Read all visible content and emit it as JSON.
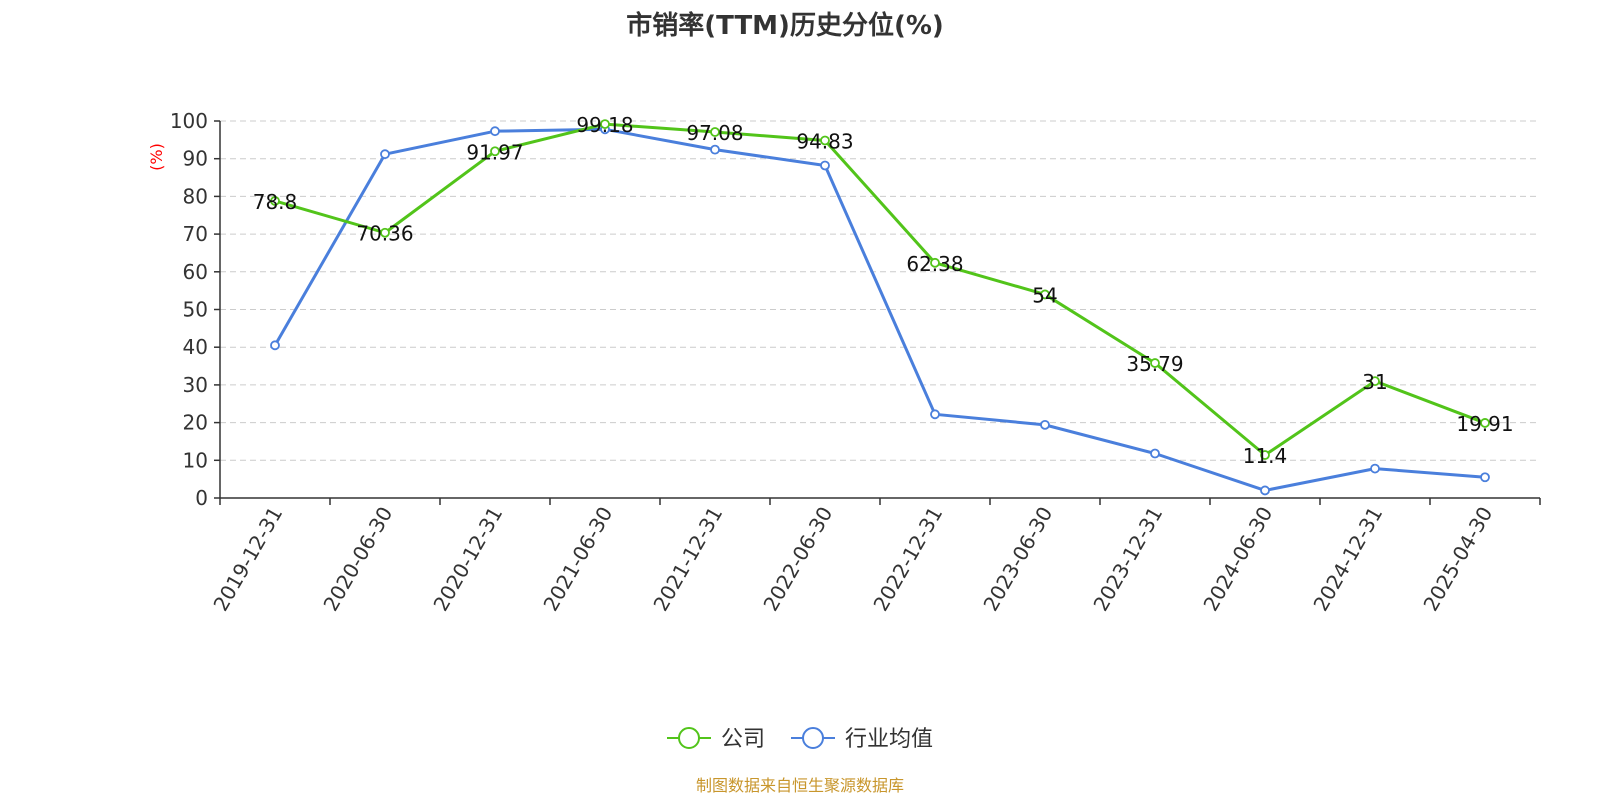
{
  "chart_data": {
    "type": "line",
    "title": "市销率(TTM)历史分位(%)",
    "ylabel": "(%)",
    "xlabel": "",
    "ylim": [
      0,
      100
    ],
    "yticks": [
      0,
      10,
      20,
      30,
      40,
      50,
      60,
      70,
      80,
      90,
      100
    ],
    "grid": true,
    "legend_position": "bottom",
    "categories": [
      "2019-12-31",
      "2020-06-30",
      "2020-12-31",
      "2021-06-30",
      "2021-12-31",
      "2022-06-30",
      "2022-12-31",
      "2023-06-30",
      "2023-12-31",
      "2024-06-30",
      "2024-12-31",
      "2025-04-30"
    ],
    "series": [
      {
        "name": "公司",
        "color": "#52c41a",
        "values": [
          78.8,
          70.36,
          91.97,
          99.18,
          97.08,
          94.83,
          62.38,
          54,
          35.79,
          11.4,
          31,
          19.91
        ],
        "data_labels": [
          "78.8",
          "70.36",
          "91.97",
          "99.18",
          "97.08",
          "94.83",
          "62.38",
          "54",
          "35.79",
          "11.4",
          "31",
          "19.91"
        ]
      },
      {
        "name": "行业均值",
        "color": "#4a7fdc",
        "values": [
          40.5,
          91.2,
          97.3,
          97.8,
          92.4,
          88.2,
          22.2,
          19.4,
          11.8,
          2.0,
          7.8,
          5.5
        ]
      }
    ],
    "source": "制图数据来自恒生聚源数据库"
  }
}
